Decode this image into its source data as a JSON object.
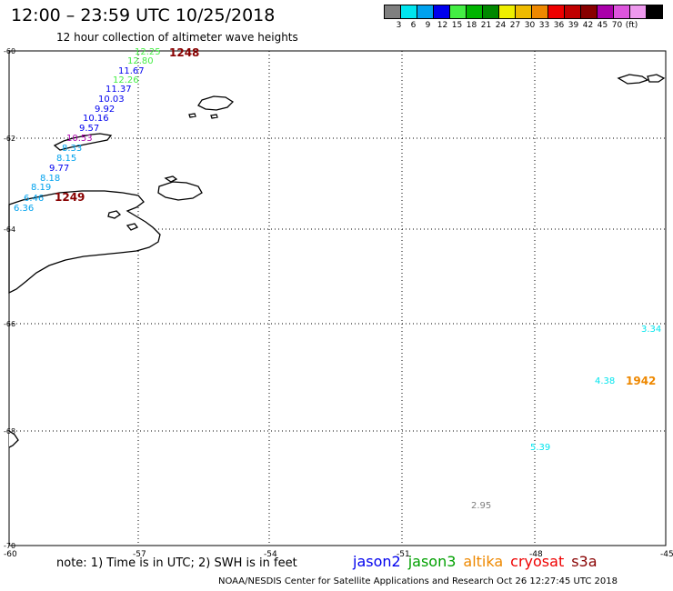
{
  "header": {
    "title": "12:00 – 23:59 UTC 10/25/2018",
    "subtitle": "12 hour collection of altimeter wave heights"
  },
  "legend": {
    "labels": [
      "3",
      "6",
      "9",
      "12",
      "15",
      "18",
      "21",
      "24",
      "27",
      "30",
      "33",
      "36",
      "39",
      "42",
      "45",
      "70",
      "(ft)"
    ],
    "colors": [
      "#7f7f7f",
      "#00e5ee",
      "#00a2ee",
      "#0000ee",
      "#44ee44",
      "#00b400",
      "#008800",
      "#eeee00",
      "#eebb00",
      "#ee8800",
      "#ee0000",
      "#c00000",
      "#880000",
      "#aa00aa",
      "#dd55dd",
      "#ee99ee",
      "#000000"
    ]
  },
  "map": {
    "y_ticks": [
      "-60",
      "-62",
      "-64",
      "-66",
      "-68",
      "-70"
    ],
    "x_ticks": [
      "-60",
      "-57",
      "-54",
      "-51",
      "-48",
      "-45"
    ]
  },
  "observations": [
    {
      "text": "12.25",
      "color": "#44ee44"
    },
    {
      "text": "12.80",
      "color": "#44ee44"
    },
    {
      "text": "11.67",
      "color": "#0000ee"
    },
    {
      "text": "12.26",
      "color": "#44ee44"
    },
    {
      "text": "11.37",
      "color": "#0000ee"
    },
    {
      "text": "10.03",
      "color": "#0000ee"
    },
    {
      "text": "9.92",
      "color": "#0000ee"
    },
    {
      "text": "10.16",
      "color": "#0000ee"
    },
    {
      "text": "9.57",
      "color": "#0000ee"
    },
    {
      "text": "10.53",
      "color": "#aa00aa"
    },
    {
      "text": "8.33",
      "color": "#00a2ee"
    },
    {
      "text": "8.15",
      "color": "#00a2ee"
    },
    {
      "text": "9.77",
      "color": "#0000ee"
    },
    {
      "text": "8.18",
      "color": "#00a2ee"
    },
    {
      "text": "8.19",
      "color": "#00a2ee"
    },
    {
      "text": "6.46",
      "color": "#00a2ee"
    },
    {
      "text": "6.36",
      "color": "#00a2ee"
    },
    {
      "text": "3.34",
      "color": "#00e5ee"
    },
    {
      "text": "4.38",
      "color": "#00e5ee"
    },
    {
      "text": "5.39",
      "color": "#00e5ee"
    },
    {
      "text": "2.95",
      "color": "#7f7f7f"
    }
  ],
  "times": [
    {
      "text": "1248",
      "color": "#880000"
    },
    {
      "text": "1249",
      "color": "#880000"
    },
    {
      "text": "1942",
      "color": "#ee8800"
    }
  ],
  "footer": {
    "note": "note:  1) Time is in UTC;  2) SWH is in feet",
    "satellites": [
      {
        "name": "jason2",
        "color": "#0000ee"
      },
      {
        "name": "jason3",
        "color": "#00a000"
      },
      {
        "name": "altika",
        "color": "#ee8800"
      },
      {
        "name": "cryosat",
        "color": "#ee0000"
      },
      {
        "name": "s3a",
        "color": "#880000"
      }
    ],
    "credit": "NOAA/NESDIS Center for Satellite Applications and Research    Oct 26 12:27:45 UTC 2018"
  }
}
